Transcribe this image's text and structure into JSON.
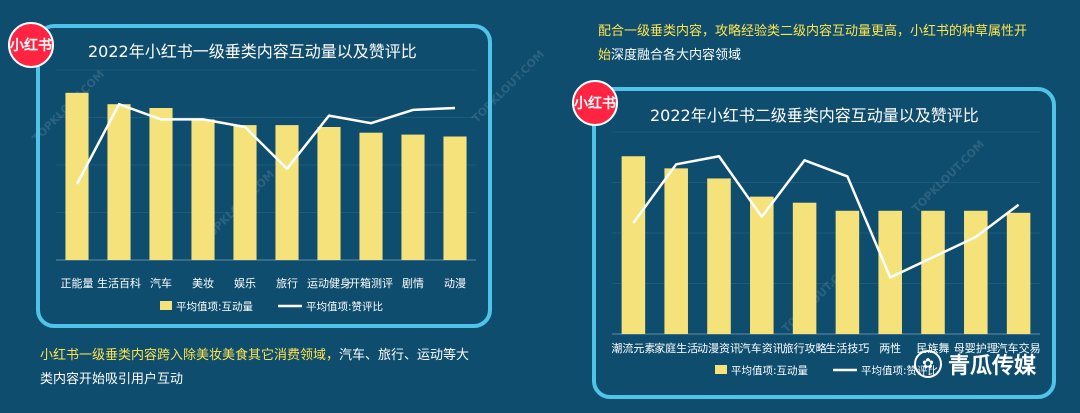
{
  "logo_text": "小红书",
  "brand": {
    "name": "青瓜传媒"
  },
  "watermarks": [
    "TOPKLOUT.COM",
    "TOPKLOUT.COM",
    "TOPKLOUT.COM",
    "TOPKLOUT.COM",
    "TOPKLOUT.COM"
  ],
  "notes": {
    "left_highlight": "小红书一级垂类内容跨入除美妆美食其它消费领域，",
    "left_rest": "汽车、旅行、运动等大类内容开始吸引用户互动",
    "right_highlight": "配合一级垂类内容，攻略经验类二级内容互动量更高，小红书的种草属性开始",
    "right_rest": "深度融合各大内容领域"
  },
  "colors": {
    "bar": "#f6e27a",
    "line": "#ffffff",
    "panel_border": "#4fc3e8",
    "highlight": "#ffe34d"
  },
  "chart_data": [
    {
      "type": "bar",
      "title": "2022年小红书一级垂类内容互动量以及赞评比",
      "categories": [
        "正能量",
        "生活百科",
        "汽车",
        "美妆",
        "娱乐",
        "旅行",
        "运动健身",
        "开箱测评",
        "剧情",
        "动漫"
      ],
      "series": [
        {
          "name": "平均值项:互动量",
          "type": "bar",
          "values": [
            88,
            82,
            80,
            74,
            71,
            71,
            70,
            67,
            66,
            65
          ]
        },
        {
          "name": "平均值项:赞评比",
          "type": "line",
          "values": [
            40,
            82,
            74,
            74,
            70,
            48,
            76,
            72,
            79,
            80
          ]
        }
      ],
      "ylim": [
        0,
        100
      ],
      "grid": true,
      "legend": "bottom"
    },
    {
      "type": "bar",
      "title": "2022年小红书二级垂类内容互动量以及赞评比",
      "categories": [
        "潮流元素",
        "家庭生活",
        "动漫资讯",
        "汽车资讯",
        "旅行攻略",
        "生活技巧",
        "两性",
        "民族舞",
        "母婴护理",
        "汽车交易"
      ],
      "series": [
        {
          "name": "平均值项:互动量",
          "type": "bar",
          "values": [
            88,
            82,
            77,
            68,
            65,
            61,
            61,
            61,
            61,
            60
          ]
        },
        {
          "name": "平均值项:赞评比",
          "type": "line",
          "values": [
            55,
            84,
            88,
            58,
            86,
            78,
            28,
            38,
            48,
            64
          ]
        }
      ],
      "ylim": [
        0,
        100
      ],
      "grid": true,
      "legend": "bottom"
    }
  ]
}
